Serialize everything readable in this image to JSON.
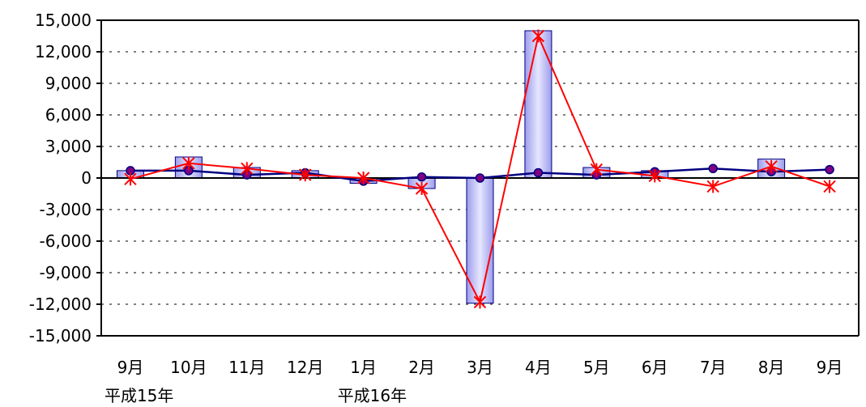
{
  "chart_data": {
    "type": "bar",
    "categories": [
      "9月",
      "10月",
      "11月",
      "12月",
      "1月",
      "2月",
      "3月",
      "4月",
      "5月",
      "6月",
      "7月",
      "8月",
      "9月"
    ],
    "era_labels": [
      {
        "text": "平成15年",
        "category_index": 0
      },
      {
        "text": "平成16年",
        "category_index": 4
      }
    ],
    "ylim": [
      -15000,
      15000
    ],
    "yticks": [
      15000,
      12000,
      9000,
      6000,
      3000,
      0,
      -3000,
      -6000,
      -9000,
      -12000,
      -15000
    ],
    "ytick_labels": [
      "15,000",
      "12,000",
      "9,000",
      "6,000",
      "3,000",
      "0",
      "-3,000",
      "-6,000",
      "-9,000",
      "-12,000",
      "-15,000"
    ],
    "grid": "horizontal dotted",
    "series": [
      {
        "type": "bar",
        "color": "#b8b8f0",
        "values": [
          700,
          2000,
          1000,
          700,
          -500,
          -1000,
          -11900,
          14000,
          1000,
          700,
          0,
          1800,
          0
        ]
      },
      {
        "type": "line",
        "marker": "circle",
        "color": "#000080",
        "values": [
          700,
          700,
          300,
          500,
          -300,
          100,
          0,
          500,
          300,
          600,
          900,
          600,
          800
        ]
      },
      {
        "type": "line",
        "marker": "x",
        "color": "#ff0000",
        "values": [
          -100,
          1400,
          900,
          300,
          0,
          -1000,
          -11800,
          13500,
          800,
          200,
          -800,
          1100,
          -800
        ]
      }
    ]
  }
}
